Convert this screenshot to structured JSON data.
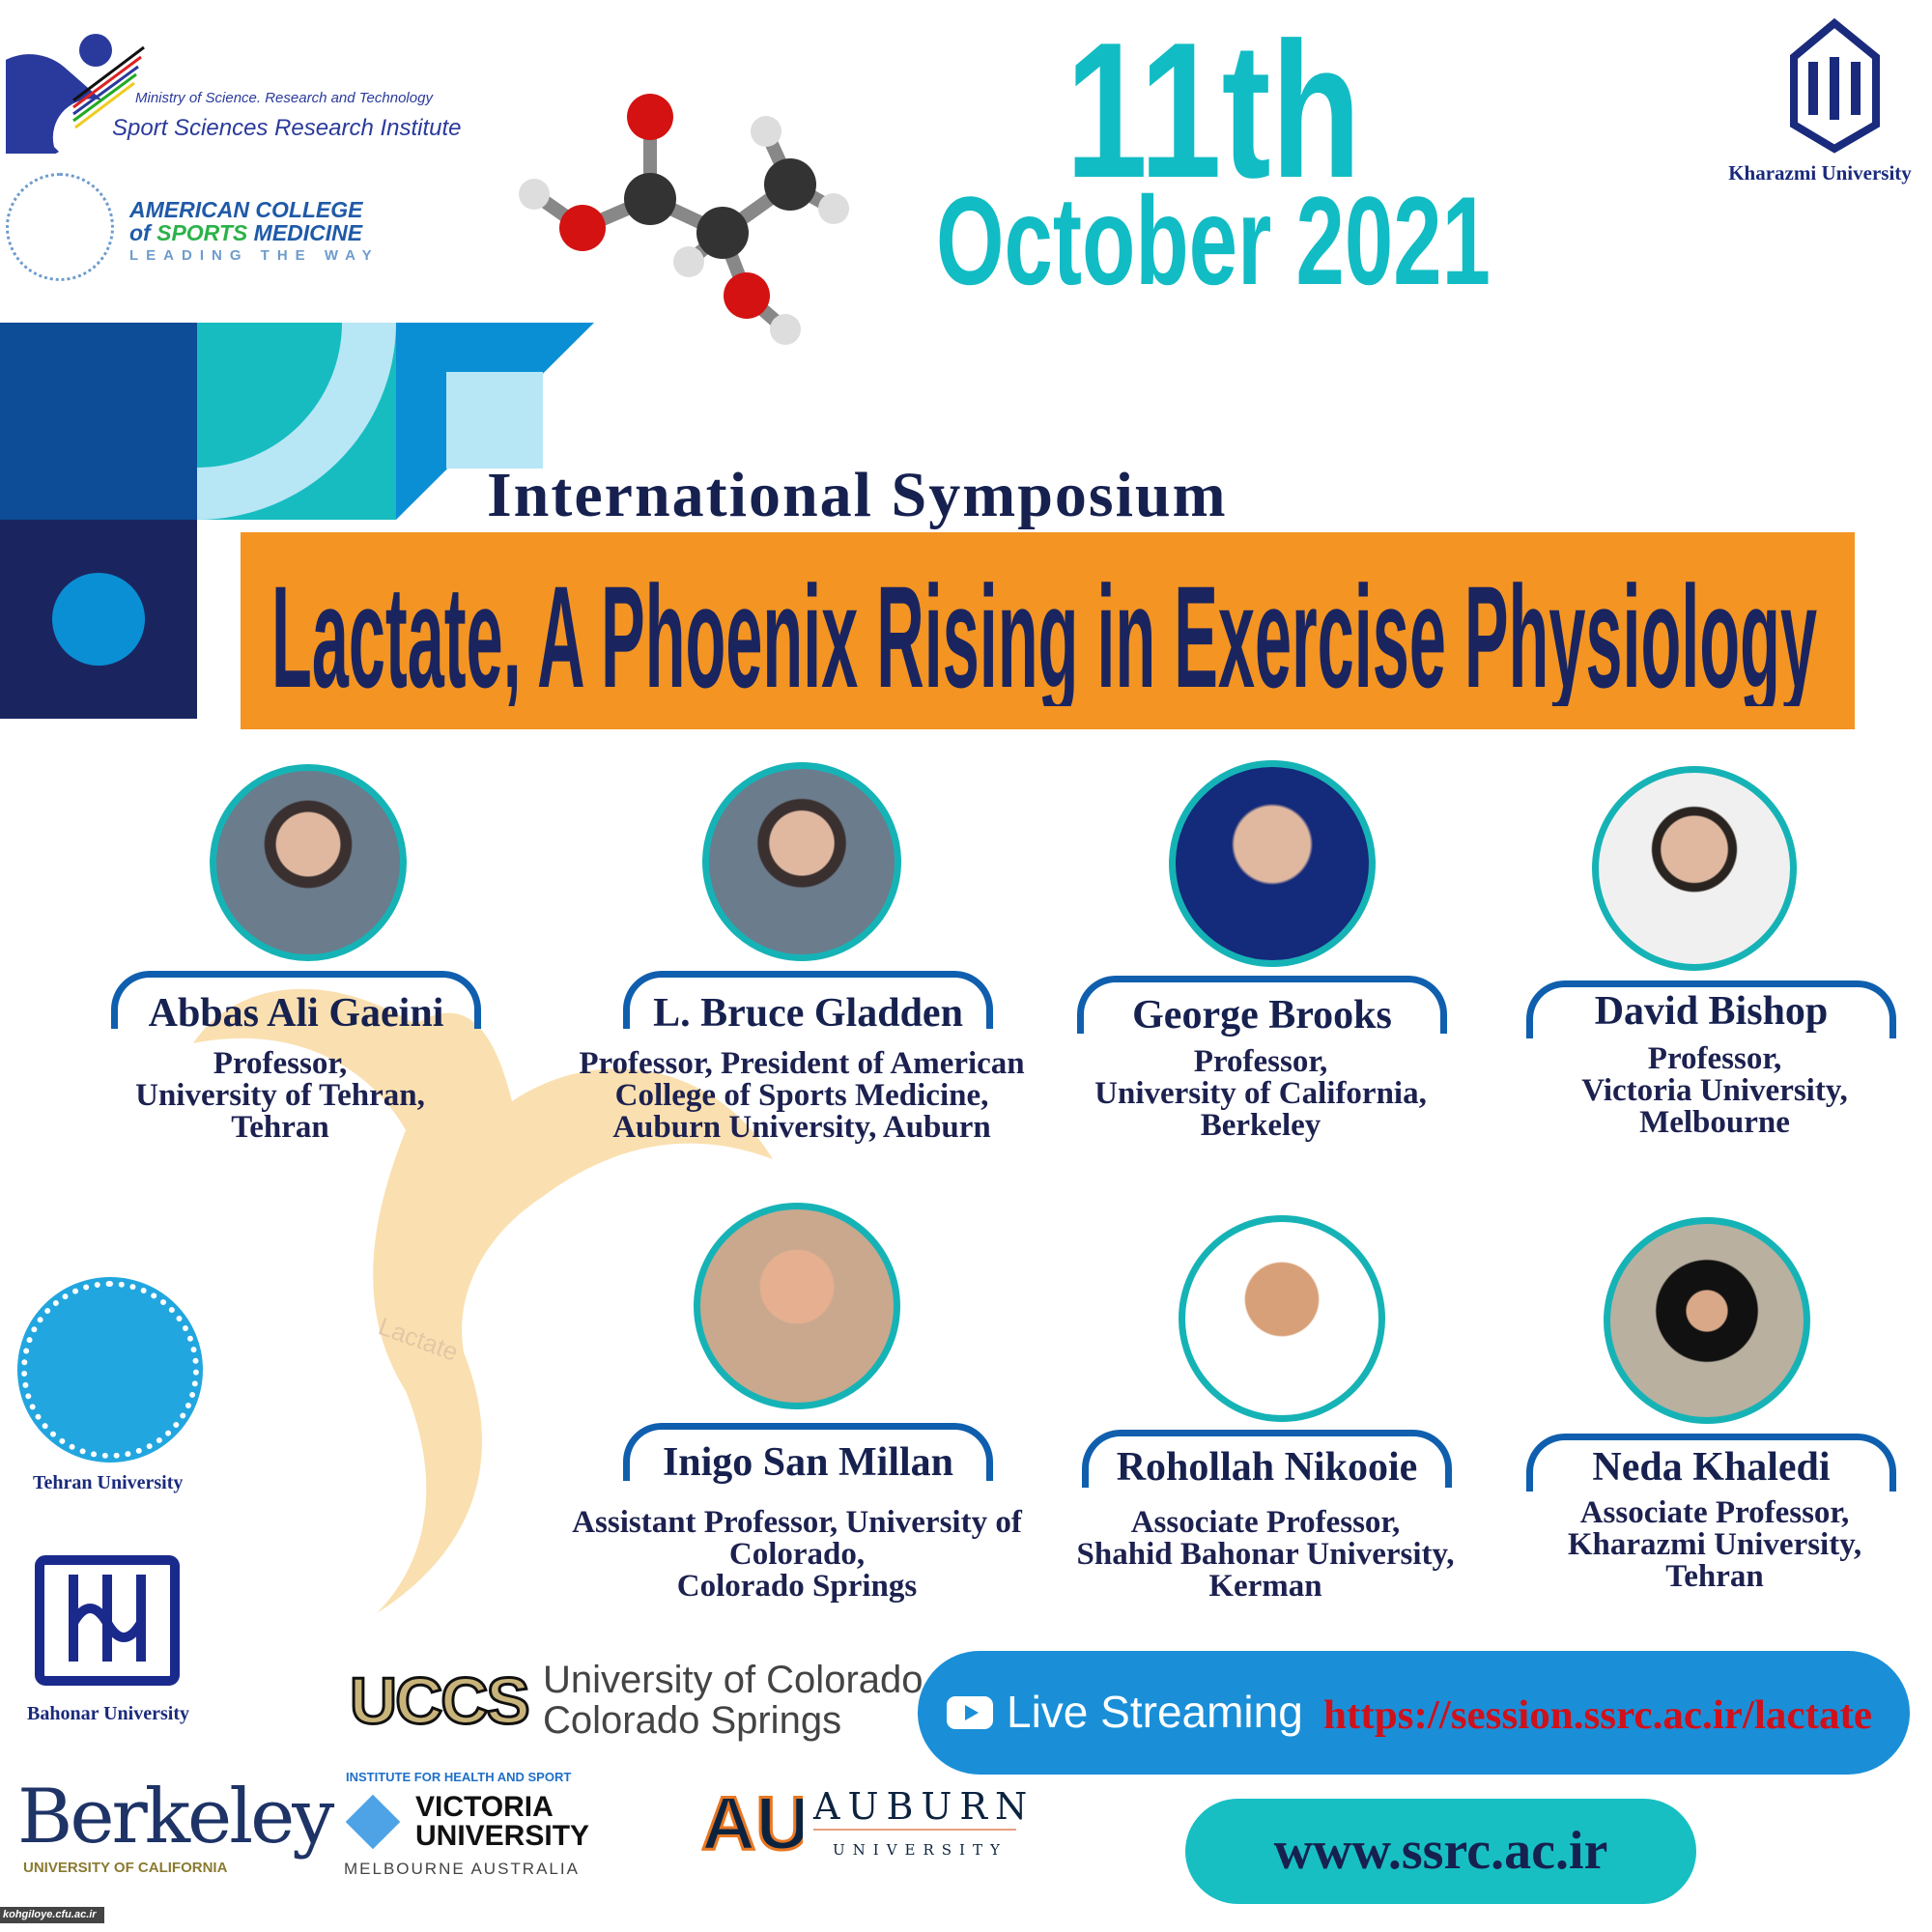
{
  "header": {
    "ssrc": {
      "ministry": "Ministry of Science. Research and Technology",
      "institute": "Sport Sciences Research Institute"
    },
    "acsm": {
      "line1": "AMERICAN COLLEGE",
      "line2_of": "of",
      "line2_sports": "SPORTS",
      "line2_medicine": "MEDICINE",
      "tagline": "LEADING THE WAY"
    },
    "date_day": "11th",
    "date_month_year": "October 2021",
    "kharazmi": "Kharazmi University"
  },
  "event": {
    "type": "International Symposium",
    "title": "Lactate, A Phoenix Rising in Exercise Physiology",
    "watermark": "Lactate"
  },
  "speakers": [
    {
      "name": "Abbas Ali Gaeini",
      "role": [
        "Professor,",
        "University of Tehran,",
        "Tehran"
      ]
    },
    {
      "name": "L. Bruce Gladden",
      "role": [
        "Professor, President of American",
        "College of Sports Medicine,",
        "Auburn University, Auburn"
      ]
    },
    {
      "name": "George Brooks",
      "role": [
        "Professor,",
        "University of California,",
        "Berkeley"
      ]
    },
    {
      "name": "David Bishop",
      "role": [
        "Professor,",
        "Victoria University,",
        "Melbourne"
      ]
    },
    {
      "name": "Inigo San Millan",
      "role": [
        "Assistant Professor, University of",
        "Colorado,",
        "Colorado Springs"
      ]
    },
    {
      "name": "Rohollah Nikooie",
      "role": [
        "Associate Professor,",
        "Shahid Bahonar University,",
        "Kerman"
      ]
    },
    {
      "name": "Neda Khaledi",
      "role": [
        "Associate Professor,",
        "Kharazmi University,",
        "Tehran"
      ]
    }
  ],
  "partners": {
    "tehran": "Tehran University",
    "bahonar": "Bahonar University",
    "uccs": {
      "abbr": "UCCS",
      "line1": "University of Colorado",
      "line2": "Colorado Springs"
    },
    "berkeley": {
      "name": "Berkeley",
      "sub": "UNIVERSITY OF CALIFORNIA"
    },
    "victoria": {
      "top": "INSTITUTE FOR HEALTH AND SPORT",
      "line1": "VICTORIA",
      "line2": "UNIVERSITY",
      "sub": "MELBOURNE AUSTRALIA"
    },
    "auburn": {
      "name": "AUBURN",
      "sub": "UNIVERSITY"
    }
  },
  "stream": {
    "label": "Live Streaming",
    "url": "https://session.ssrc.ac.ir/lactate",
    "icon": "youtube-play-icon"
  },
  "website": "www.ssrc.ac.ir",
  "badge": "kohgiloye.cfu.ac.ir",
  "colors": {
    "teal": "#12bcc4",
    "navy": "#16214f",
    "orange": "#f39423",
    "blue": "#1a8fd8",
    "url_red": "#d0101a"
  }
}
